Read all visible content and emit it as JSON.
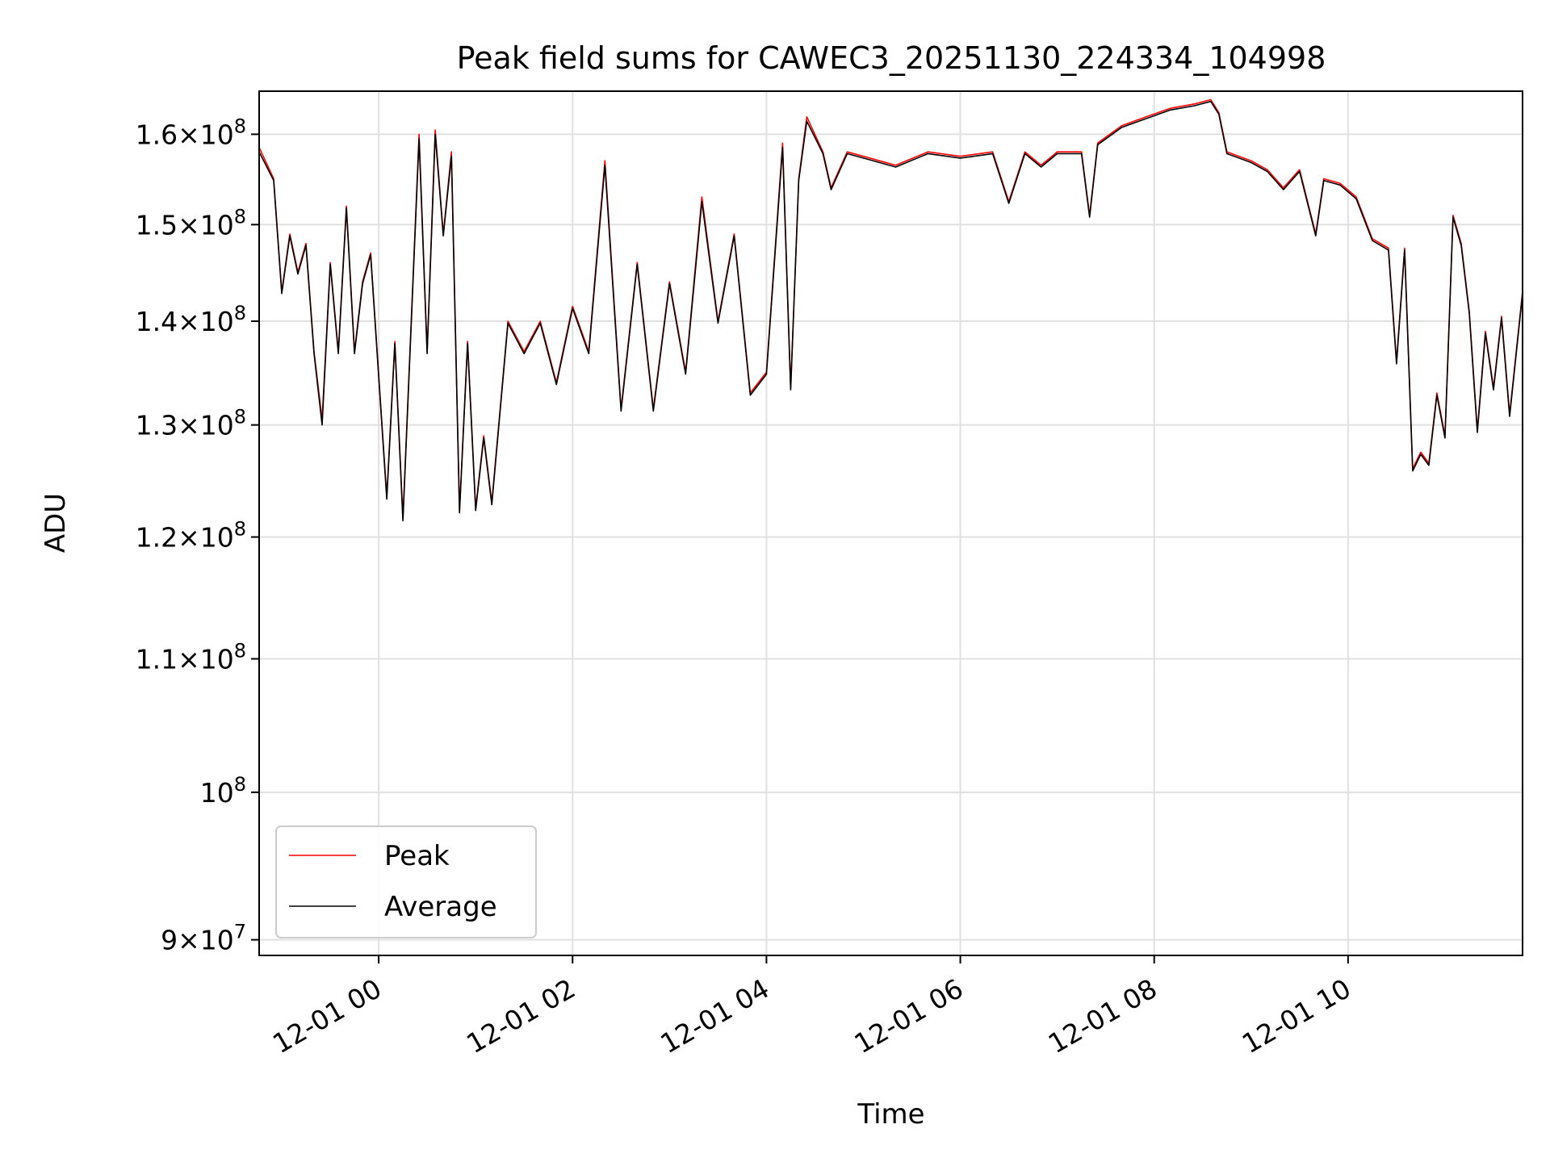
{
  "chart_data": {
    "type": "line",
    "title": "Peak field sums for CAWEC3_20251130_224334_104998",
    "xlabel": "Time",
    "ylabel": "ADU",
    "yscale": "log",
    "ylim": [
      89000000,
      165000000
    ],
    "xlim": [
      "2025-11-30 22:46",
      "2025-12-01 11:48"
    ],
    "grid": true,
    "legend_position": "lower-left",
    "x_ticks": [
      {
        "t": "2025-12-01 00:00",
        "label": "12-01 00"
      },
      {
        "t": "2025-12-01 02:00",
        "label": "12-01 02"
      },
      {
        "t": "2025-12-01 04:00",
        "label": "12-01 04"
      },
      {
        "t": "2025-12-01 06:00",
        "label": "12-01 06"
      },
      {
        "t": "2025-12-01 08:00",
        "label": "12-01 08"
      },
      {
        "t": "2025-12-01 10:00",
        "label": "12-01 10"
      }
    ],
    "y_ticks": [
      {
        "value": 90000000,
        "mantissa": "9",
        "exp": "7",
        "full": false
      },
      {
        "value": 100000000,
        "mantissa": "",
        "exp": "8",
        "full": true
      },
      {
        "value": 110000000,
        "mantissa": "1.1",
        "exp": "8",
        "full": false
      },
      {
        "value": 120000000,
        "mantissa": "1.2",
        "exp": "8",
        "full": false
      },
      {
        "value": 130000000,
        "mantissa": "1.3",
        "exp": "8",
        "full": false
      },
      {
        "value": 140000000,
        "mantissa": "1.4",
        "exp": "8",
        "full": false
      },
      {
        "value": 150000000,
        "mantissa": "1.5",
        "exp": "8",
        "full": false
      },
      {
        "value": 160000000,
        "mantissa": "1.6",
        "exp": "8",
        "full": false
      }
    ],
    "series": [
      {
        "name": "Peak",
        "color": "#ff0000",
        "points": [
          [
            "2025-11-30 22:46",
            158500000
          ],
          [
            "2025-11-30 22:55",
            155000000
          ],
          [
            "2025-11-30 23:00",
            143000000
          ],
          [
            "2025-11-30 23:05",
            149000000
          ],
          [
            "2025-11-30 23:10",
            145000000
          ],
          [
            "2025-11-30 23:15",
            148000000
          ],
          [
            "2025-11-30 23:20",
            137000000
          ],
          [
            "2025-11-30 23:25",
            130500000
          ],
          [
            "2025-11-30 23:30",
            146000000
          ],
          [
            "2025-11-30 23:35",
            137000000
          ],
          [
            "2025-11-30 23:40",
            152000000
          ],
          [
            "2025-11-30 23:45",
            137000000
          ],
          [
            "2025-11-30 23:50",
            144000000
          ],
          [
            "2025-11-30 23:55",
            147000000
          ],
          [
            "2025-12-01 00:05",
            123500000
          ],
          [
            "2025-12-01 00:10",
            138000000
          ],
          [
            "2025-12-01 00:15",
            121600000
          ],
          [
            "2025-12-01 00:25",
            160000000
          ],
          [
            "2025-12-01 00:30",
            137000000
          ],
          [
            "2025-12-01 00:35",
            160500000
          ],
          [
            "2025-12-01 00:40",
            149000000
          ],
          [
            "2025-12-01 00:45",
            158000000
          ],
          [
            "2025-12-01 00:50",
            122300000
          ],
          [
            "2025-12-01 00:55",
            138000000
          ],
          [
            "2025-12-01 01:00",
            122500000
          ],
          [
            "2025-12-01 01:05",
            129000000
          ],
          [
            "2025-12-01 01:10",
            123000000
          ],
          [
            "2025-12-01 01:20",
            140000000
          ],
          [
            "2025-12-01 01:30",
            137000000
          ],
          [
            "2025-12-01 01:40",
            140000000
          ],
          [
            "2025-12-01 01:50",
            134000000
          ],
          [
            "2025-12-01 02:00",
            141500000
          ],
          [
            "2025-12-01 02:10",
            137000000
          ],
          [
            "2025-12-01 02:20",
            157000000
          ],
          [
            "2025-12-01 02:30",
            131500000
          ],
          [
            "2025-12-01 02:40",
            146000000
          ],
          [
            "2025-12-01 02:50",
            131500000
          ],
          [
            "2025-12-01 03:00",
            144000000
          ],
          [
            "2025-12-01 03:10",
            135000000
          ],
          [
            "2025-12-01 03:20",
            153000000
          ],
          [
            "2025-12-01 03:30",
            140000000
          ],
          [
            "2025-12-01 03:40",
            149000000
          ],
          [
            "2025-12-01 03:50",
            133000000
          ],
          [
            "2025-12-01 04:00",
            135000000
          ],
          [
            "2025-12-01 04:10",
            159000000
          ],
          [
            "2025-12-01 04:15",
            133500000
          ],
          [
            "2025-12-01 04:20",
            155000000
          ],
          [
            "2025-12-01 04:25",
            162000000
          ],
          [
            "2025-12-01 04:35",
            158000000
          ],
          [
            "2025-12-01 04:40",
            154000000
          ],
          [
            "2025-12-01 04:50",
            158000000
          ],
          [
            "2025-12-01 05:00",
            157500000
          ],
          [
            "2025-12-01 05:20",
            156500000
          ],
          [
            "2025-12-01 05:40",
            158000000
          ],
          [
            "2025-12-01 06:00",
            157500000
          ],
          [
            "2025-12-01 06:20",
            158000000
          ],
          [
            "2025-12-01 06:30",
            152500000
          ],
          [
            "2025-12-01 06:40",
            158000000
          ],
          [
            "2025-12-01 06:50",
            156500000
          ],
          [
            "2025-12-01 07:00",
            158000000
          ],
          [
            "2025-12-01 07:15",
            158000000
          ],
          [
            "2025-12-01 07:20",
            151000000
          ],
          [
            "2025-12-01 07:25",
            159000000
          ],
          [
            "2025-12-01 07:40",
            161000000
          ],
          [
            "2025-12-01 07:55",
            162000000
          ],
          [
            "2025-12-01 08:10",
            163000000
          ],
          [
            "2025-12-01 08:25",
            163500000
          ],
          [
            "2025-12-01 08:35",
            164000000
          ],
          [
            "2025-12-01 08:40",
            162500000
          ],
          [
            "2025-12-01 08:45",
            158000000
          ],
          [
            "2025-12-01 09:00",
            157000000
          ],
          [
            "2025-12-01 09:10",
            156000000
          ],
          [
            "2025-12-01 09:20",
            154000000
          ],
          [
            "2025-12-01 09:30",
            156000000
          ],
          [
            "2025-12-01 09:40",
            149000000
          ],
          [
            "2025-12-01 09:45",
            155000000
          ],
          [
            "2025-12-01 09:55",
            154500000
          ],
          [
            "2025-12-01 10:05",
            153000000
          ],
          [
            "2025-12-01 10:15",
            148500000
          ],
          [
            "2025-12-01 10:25",
            147500000
          ],
          [
            "2025-12-01 10:30",
            136000000
          ],
          [
            "2025-12-01 10:35",
            147500000
          ],
          [
            "2025-12-01 10:40",
            126000000
          ],
          [
            "2025-12-01 10:45",
            127500000
          ],
          [
            "2025-12-01 10:50",
            126500000
          ],
          [
            "2025-12-01 10:55",
            133000000
          ],
          [
            "2025-12-01 11:00",
            129000000
          ],
          [
            "2025-12-01 11:05",
            151000000
          ],
          [
            "2025-12-01 11:10",
            148000000
          ],
          [
            "2025-12-01 11:15",
            141000000
          ],
          [
            "2025-12-01 11:20",
            129500000
          ],
          [
            "2025-12-01 11:25",
            139000000
          ],
          [
            "2025-12-01 11:30",
            133500000
          ],
          [
            "2025-12-01 11:35",
            140500000
          ],
          [
            "2025-12-01 11:40",
            131000000
          ],
          [
            "2025-12-01 11:48",
            143000000
          ]
        ]
      },
      {
        "name": "Average",
        "color": "#000000",
        "points": [
          [
            "2025-11-30 22:46",
            158000000
          ],
          [
            "2025-11-30 22:55",
            154800000
          ],
          [
            "2025-11-30 23:00",
            142800000
          ],
          [
            "2025-11-30 23:05",
            148800000
          ],
          [
            "2025-11-30 23:10",
            144800000
          ],
          [
            "2025-11-30 23:15",
            147800000
          ],
          [
            "2025-11-30 23:20",
            136800000
          ],
          [
            "2025-11-30 23:25",
            130000000
          ],
          [
            "2025-11-30 23:30",
            145800000
          ],
          [
            "2025-11-30 23:35",
            136800000
          ],
          [
            "2025-11-30 23:40",
            151800000
          ],
          [
            "2025-11-30 23:45",
            136800000
          ],
          [
            "2025-11-30 23:50",
            143800000
          ],
          [
            "2025-11-30 23:55",
            146800000
          ],
          [
            "2025-12-01 00:05",
            123300000
          ],
          [
            "2025-12-01 00:10",
            137800000
          ],
          [
            "2025-12-01 00:15",
            121400000
          ],
          [
            "2025-12-01 00:25",
            159500000
          ],
          [
            "2025-12-01 00:30",
            136800000
          ],
          [
            "2025-12-01 00:35",
            160000000
          ],
          [
            "2025-12-01 00:40",
            148800000
          ],
          [
            "2025-12-01 00:45",
            157500000
          ],
          [
            "2025-12-01 00:50",
            122100000
          ],
          [
            "2025-12-01 00:55",
            137800000
          ],
          [
            "2025-12-01 01:00",
            122300000
          ],
          [
            "2025-12-01 01:05",
            128800000
          ],
          [
            "2025-12-01 01:10",
            122800000
          ],
          [
            "2025-12-01 01:20",
            139800000
          ],
          [
            "2025-12-01 01:30",
            136800000
          ],
          [
            "2025-12-01 01:40",
            139800000
          ],
          [
            "2025-12-01 01:50",
            133800000
          ],
          [
            "2025-12-01 02:00",
            141300000
          ],
          [
            "2025-12-01 02:10",
            136800000
          ],
          [
            "2025-12-01 02:20",
            156500000
          ],
          [
            "2025-12-01 02:30",
            131300000
          ],
          [
            "2025-12-01 02:40",
            145800000
          ],
          [
            "2025-12-01 02:50",
            131300000
          ],
          [
            "2025-12-01 03:00",
            143800000
          ],
          [
            "2025-12-01 03:10",
            134800000
          ],
          [
            "2025-12-01 03:20",
            152500000
          ],
          [
            "2025-12-01 03:30",
            139800000
          ],
          [
            "2025-12-01 03:40",
            148800000
          ],
          [
            "2025-12-01 03:50",
            132800000
          ],
          [
            "2025-12-01 04:00",
            134800000
          ],
          [
            "2025-12-01 04:10",
            158500000
          ],
          [
            "2025-12-01 04:15",
            133300000
          ],
          [
            "2025-12-01 04:20",
            154800000
          ],
          [
            "2025-12-01 04:25",
            161500000
          ],
          [
            "2025-12-01 04:35",
            157800000
          ],
          [
            "2025-12-01 04:40",
            153800000
          ],
          [
            "2025-12-01 04:50",
            157800000
          ],
          [
            "2025-12-01 05:00",
            157300000
          ],
          [
            "2025-12-01 05:20",
            156300000
          ],
          [
            "2025-12-01 05:40",
            157800000
          ],
          [
            "2025-12-01 06:00",
            157300000
          ],
          [
            "2025-12-01 06:20",
            157800000
          ],
          [
            "2025-12-01 06:30",
            152300000
          ],
          [
            "2025-12-01 06:40",
            157800000
          ],
          [
            "2025-12-01 06:50",
            156300000
          ],
          [
            "2025-12-01 07:00",
            157800000
          ],
          [
            "2025-12-01 07:15",
            157800000
          ],
          [
            "2025-12-01 07:20",
            150800000
          ],
          [
            "2025-12-01 07:25",
            158800000
          ],
          [
            "2025-12-01 07:40",
            160800000
          ],
          [
            "2025-12-01 07:55",
            161800000
          ],
          [
            "2025-12-01 08:10",
            162800000
          ],
          [
            "2025-12-01 08:25",
            163300000
          ],
          [
            "2025-12-01 08:35",
            163800000
          ],
          [
            "2025-12-01 08:40",
            162300000
          ],
          [
            "2025-12-01 08:45",
            157800000
          ],
          [
            "2025-12-01 09:00",
            156800000
          ],
          [
            "2025-12-01 09:10",
            155800000
          ],
          [
            "2025-12-01 09:20",
            153800000
          ],
          [
            "2025-12-01 09:30",
            155800000
          ],
          [
            "2025-12-01 09:40",
            148800000
          ],
          [
            "2025-12-01 09:45",
            154800000
          ],
          [
            "2025-12-01 09:55",
            154300000
          ],
          [
            "2025-12-01 10:05",
            152800000
          ],
          [
            "2025-12-01 10:15",
            148300000
          ],
          [
            "2025-12-01 10:25",
            147300000
          ],
          [
            "2025-12-01 10:30",
            135800000
          ],
          [
            "2025-12-01 10:35",
            147300000
          ],
          [
            "2025-12-01 10:40",
            125800000
          ],
          [
            "2025-12-01 10:45",
            127300000
          ],
          [
            "2025-12-01 10:50",
            126300000
          ],
          [
            "2025-12-01 10:55",
            132800000
          ],
          [
            "2025-12-01 11:00",
            128800000
          ],
          [
            "2025-12-01 11:05",
            150800000
          ],
          [
            "2025-12-01 11:10",
            147800000
          ],
          [
            "2025-12-01 11:15",
            140800000
          ],
          [
            "2025-12-01 11:20",
            129300000
          ],
          [
            "2025-12-01 11:25",
            138800000
          ],
          [
            "2025-12-01 11:30",
            133300000
          ],
          [
            "2025-12-01 11:35",
            140300000
          ],
          [
            "2025-12-01 11:40",
            130800000
          ],
          [
            "2025-12-01 11:48",
            142800000
          ]
        ]
      }
    ]
  }
}
